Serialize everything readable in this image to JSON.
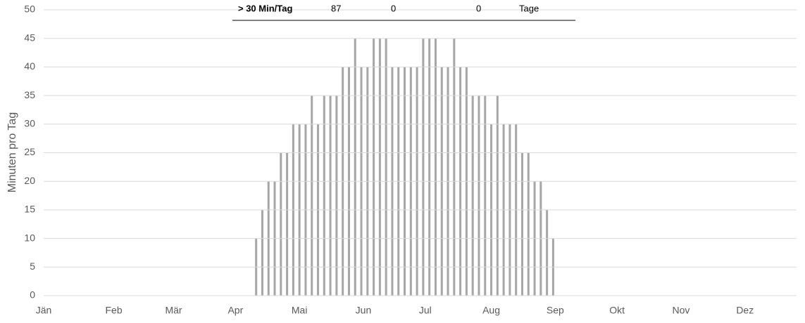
{
  "table": {
    "rows": [
      [
        "> 30 Min/Tag",
        87,
        0,
        0,
        "Tage"
      ]
    ]
  },
  "chart_data": {
    "type": "bar",
    "y_label": "Minuten pro Tag",
    "x": [
      103,
      106,
      109,
      112,
      115,
      118,
      121,
      124,
      127,
      130,
      133,
      136,
      139,
      142,
      145,
      148,
      151,
      154,
      157,
      160,
      163,
      166,
      169,
      172,
      175,
      178,
      181,
      184,
      187,
      190,
      193,
      196,
      199,
      202,
      205,
      208,
      211,
      214,
      217,
      220,
      223,
      226,
      229,
      232,
      235,
      238,
      241,
      244,
      247
    ],
    "values": [
      10,
      15,
      20,
      20,
      25,
      25,
      30,
      30,
      30,
      35,
      30,
      35,
      35,
      35,
      40,
      40,
      45,
      40,
      40,
      45,
      45,
      45,
      40,
      40,
      40,
      40,
      40,
      45,
      45,
      45,
      40,
      40,
      45,
      40,
      40,
      35,
      35,
      35,
      30,
      35,
      30,
      30,
      30,
      25,
      25,
      20,
      20,
      15,
      10
    ],
    "color": "#a6a6a6",
    "xlim": [
      0,
      365
    ],
    "xticks": [
      {
        "value": 0,
        "label": "Jän"
      },
      {
        "value": 34,
        "label": "Feb"
      },
      {
        "value": 63,
        "label": "Mär"
      },
      {
        "value": 93,
        "label": "Apr"
      },
      {
        "value": 124,
        "label": "Mai"
      },
      {
        "value": 155,
        "label": "Jun"
      },
      {
        "value": 185,
        "label": "Jul"
      },
      {
        "value": 217,
        "label": "Aug"
      },
      {
        "value": 248,
        "label": "Sep"
      },
      {
        "value": 278,
        "label": "Okt"
      },
      {
        "value": 309,
        "label": "Nov"
      },
      {
        "value": 340,
        "label": "Dez"
      }
    ],
    "ylim": [
      0,
      50
    ],
    "yticks": [
      0,
      5,
      10,
      15,
      20,
      25,
      30,
      35,
      40,
      45,
      50
    ],
    "grid": true
  }
}
